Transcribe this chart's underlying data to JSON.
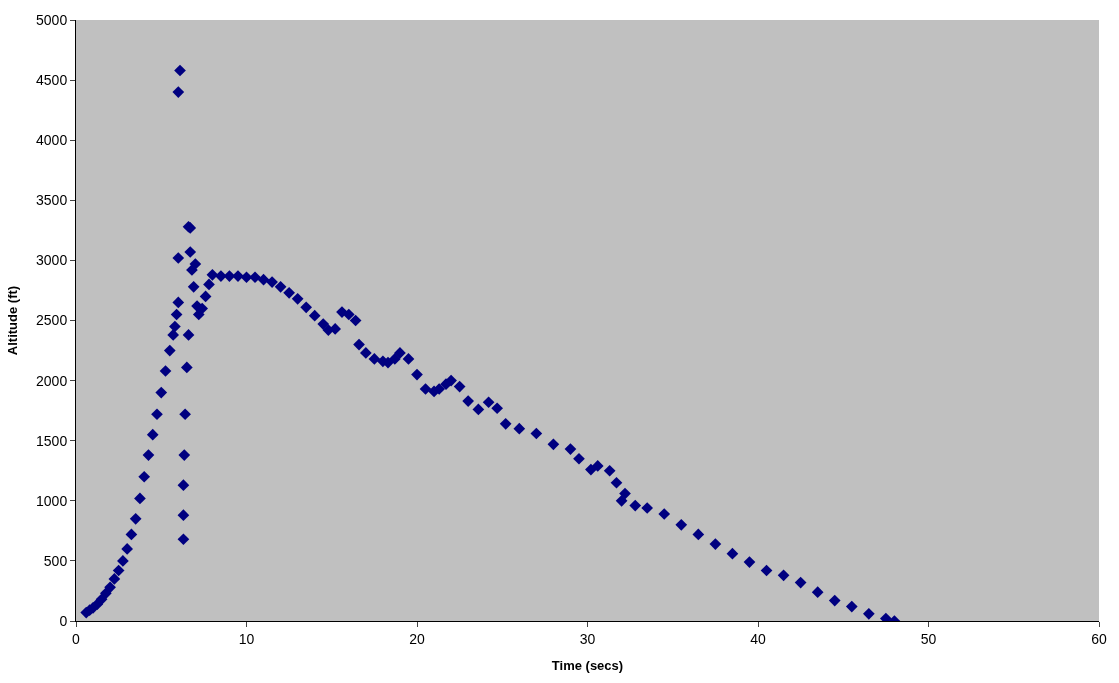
{
  "chart_data": {
    "type": "scatter",
    "xlabel": "Time (secs)",
    "ylabel": "Altitude (ft)",
    "xlim": [
      0,
      60
    ],
    "xticks": [
      0,
      10,
      20,
      30,
      40,
      50,
      60
    ],
    "ylim": [
      0,
      5000
    ],
    "yticks": [
      0,
      500,
      1000,
      1500,
      2000,
      2500,
      3000,
      3500,
      4000,
      4500,
      5000
    ],
    "grid": false,
    "legend": false,
    "marker": "diamond",
    "series": [
      {
        "color": "#000080",
        "x": [
          0.6,
          0.8,
          1,
          1.25,
          1.5,
          1.75,
          2,
          2.25,
          2.5,
          2.75,
          3,
          3.25,
          3.5,
          3.75,
          4,
          4.25,
          4.5,
          4.75,
          5,
          5.25,
          5.5,
          5.7,
          5.8,
          5.9,
          6.0,
          6.0,
          6.1,
          6.0,
          6.3,
          6.3,
          6.3,
          6.35,
          6.4,
          6.5,
          6.6,
          6.6,
          6.7,
          6.7,
          6.8,
          6.9,
          7.0,
          7.1,
          7.2,
          7.4,
          7.6,
          7.8,
          8,
          8.5,
          9,
          9.5,
          10,
          10.5,
          11,
          11.5,
          12,
          12.5,
          13,
          13.5,
          14,
          14.5,
          14.8,
          15.2,
          15.6,
          16.0,
          16.4,
          16.6,
          17,
          17.5,
          18,
          18.3,
          18.7,
          19.0,
          19.5,
          20,
          20.5,
          21,
          21.3,
          21.7,
          22,
          22.5,
          23,
          23.6,
          24.2,
          24.7,
          25.2,
          26,
          27,
          28,
          29,
          29.5,
          30.2,
          30.6,
          31.3,
          31.7,
          32,
          32.2,
          32.8,
          33.5,
          34.5,
          35.5,
          36.5,
          37.5,
          38.5,
          39.5,
          40.5,
          41.5,
          42.5,
          43.5,
          44.5,
          45.5,
          46.5,
          47.5,
          48
        ],
        "values": [
          70,
          90,
          110,
          140,
          180,
          230,
          280,
          350,
          420,
          500,
          600,
          720,
          850,
          1020,
          1200,
          1380,
          1550,
          1720,
          1900,
          2080,
          2250,
          2380,
          2450,
          2550,
          2650,
          4400,
          4580,
          3020,
          680,
          880,
          1130,
          1380,
          1720,
          2110,
          2380,
          3280,
          3270,
          3070,
          2920,
          2780,
          2970,
          2620,
          2550,
          2600,
          2700,
          2800,
          2880,
          2870,
          2870,
          2870,
          2860,
          2860,
          2840,
          2820,
          2780,
          2730,
          2680,
          2610,
          2540,
          2470,
          2420,
          2430,
          2570,
          2550,
          2500,
          2300,
          2230,
          2180,
          2160,
          2150,
          2180,
          2230,
          2180,
          2050,
          1930,
          1910,
          1930,
          1970,
          2000,
          1950,
          1830,
          1760,
          1820,
          1770,
          1640,
          1600,
          1560,
          1470,
          1430,
          1350,
          1260,
          1290,
          1250,
          1150,
          1000,
          1060,
          960,
          940,
          890,
          800,
          720,
          640,
          560,
          490,
          420,
          380,
          320,
          240,
          170,
          120,
          60,
          20,
          0
        ]
      }
    ]
  }
}
